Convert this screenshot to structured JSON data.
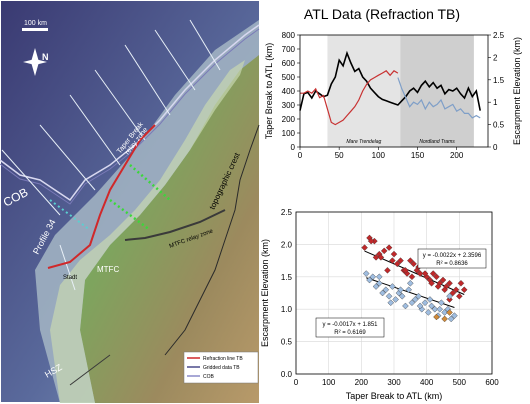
{
  "map_panel": {
    "scale_label": "100 km",
    "north_label": "N",
    "labels": [
      "COB",
      "Profile 34",
      "Taper Break",
      "relay zone",
      "topographic crest",
      "MTFC relay zone",
      "MTFC",
      "HSZ",
      "Stadt"
    ],
    "legend": [
      {
        "label": "Refraction line TB",
        "color": "#d0282a"
      },
      {
        "label": "Gridded data TB",
        "color": "#4a4a8a"
      },
      {
        "label": "COB",
        "color": "#8a8ac8"
      }
    ]
  },
  "chart_data": [
    {
      "type": "line",
      "title": "ATL Data (Refraction TB)",
      "xlabel": "",
      "ylabel": "Taper Break to ATL (km)",
      "y2label": "Escarpment Elevation (km)",
      "xlim": [
        0,
        240
      ],
      "ylim": [
        0,
        800
      ],
      "y2lim": [
        0,
        2.5
      ],
      "xticks": [
        0,
        50,
        100,
        150,
        200
      ],
      "yticks": [
        0,
        100,
        200,
        300,
        400,
        500,
        600,
        700,
        800
      ],
      "y2ticks": [
        0,
        0.5,
        1,
        1.5,
        2,
        2.5
      ],
      "regions": [
        {
          "label": "Mare Trendelag",
          "x0": 35,
          "x1": 128
        },
        {
          "label": "Nordland Trams",
          "x0": 128,
          "x1": 222
        }
      ],
      "series": [
        {
          "axis": "left",
          "color": "#000000",
          "x": [
            0,
            5,
            10,
            15,
            20,
            25,
            30,
            35,
            40,
            45,
            50,
            55,
            60,
            65,
            70,
            75,
            80,
            85,
            90,
            95,
            100,
            105,
            110,
            115,
            120,
            125,
            130,
            135,
            140,
            145,
            150,
            155,
            160,
            165,
            170,
            175,
            180,
            185,
            190,
            195,
            200,
            205,
            210,
            215,
            220,
            225,
            230
          ],
          "y": [
            260,
            380,
            390,
            350,
            400,
            380,
            360,
            370,
            450,
            500,
            620,
            580,
            670,
            600,
            540,
            560,
            500,
            470,
            420,
            390,
            360,
            340,
            330,
            320,
            310,
            300,
            330,
            360,
            400,
            420,
            390,
            440,
            470,
            430,
            460,
            420,
            440,
            380,
            410,
            400,
            420,
            380,
            350,
            420,
            360,
            400,
            260
          ]
        },
        {
          "axis": "right",
          "color": "#c83232",
          "x": [
            0,
            5,
            10,
            15,
            20,
            25,
            30,
            35,
            40,
            45,
            50,
            55,
            60,
            65,
            70,
            75,
            80,
            85,
            90,
            95,
            100,
            105,
            110,
            115,
            120,
            125
          ],
          "y": [
            1.2,
            1.2,
            1.25,
            1.2,
            1.3,
            1.1,
            1.15,
            0.85,
            0.55,
            0.5,
            0.55,
            0.6,
            0.7,
            0.8,
            0.9,
            1.05,
            1.25,
            1.4,
            1.5,
            1.55,
            1.6,
            1.65,
            1.7,
            1.6,
            1.7,
            1.65
          ]
        },
        {
          "axis": "right",
          "color": "#7f9fc8",
          "x": [
            125,
            130,
            135,
            140,
            145,
            150,
            155,
            160,
            165,
            170,
            175,
            180,
            185,
            190,
            195,
            200,
            205,
            210,
            215,
            220,
            225,
            230
          ],
          "y": [
            1.55,
            1.3,
            1.1,
            0.9,
            1.0,
            0.95,
            1.05,
            0.85,
            1.0,
            0.9,
            0.95,
            1.05,
            0.85,
            0.9,
            0.95,
            0.8,
            0.85,
            0.75,
            0.75,
            0.65,
            0.7,
            0.65
          ]
        }
      ]
    },
    {
      "type": "scatter",
      "title": "",
      "xlabel": "Taper Break to ATL (km)",
      "ylabel": "Escarpment Elevation (km)",
      "xlim": [
        0,
        600
      ],
      "ylim": [
        0,
        2.5
      ],
      "xticks": [
        0,
        100,
        200,
        300,
        400,
        500,
        600
      ],
      "yticks": [
        0.0,
        0.5,
        1.0,
        1.5,
        2.0,
        2.5
      ],
      "grid": true,
      "series": [
        {
          "marker": "diamond",
          "color": "#c0282a",
          "x": [
            210,
            225,
            240,
            245,
            255,
            270,
            285,
            295,
            300,
            310,
            320,
            330,
            340,
            350,
            360,
            370,
            380,
            390,
            400,
            410,
            420,
            430,
            440,
            450,
            460,
            470,
            480,
            490,
            500,
            505,
            515,
            230,
            260,
            280,
            335,
            355,
            375,
            395,
            415,
            435,
            455,
            470
          ],
          "y": [
            1.95,
            2.1,
            2.05,
            1.8,
            1.85,
            1.9,
            1.95,
            1.75,
            1.85,
            1.7,
            1.75,
            1.6,
            1.55,
            1.75,
            1.7,
            1.6,
            1.55,
            1.7,
            1.5,
            1.45,
            1.55,
            1.5,
            1.4,
            1.45,
            1.35,
            1.4,
            1.25,
            1.3,
            1.2,
            1.4,
            1.3,
            2.05,
            1.8,
            1.6,
            1.6,
            1.5,
            1.65,
            1.55,
            1.4,
            1.35,
            1.3,
            1.15
          ],
          "trend": {
            "label1": "y = -0.0022x + 2.3596",
            "label2": "R² = 0.8636",
            "slope": -0.0022,
            "intercept": 2.3596
          }
        },
        {
          "marker": "diamond",
          "color": "#9fbde0",
          "x": [
            215,
            225,
            235,
            245,
            255,
            265,
            275,
            285,
            295,
            305,
            315,
            325,
            335,
            345,
            355,
            365,
            375,
            385,
            395,
            405,
            415,
            425,
            435,
            445,
            455,
            465,
            475,
            485,
            255,
            290,
            320,
            350,
            380,
            410,
            440,
            470
          ],
          "y": [
            1.55,
            1.45,
            1.5,
            1.35,
            1.4,
            1.25,
            1.3,
            1.2,
            1.35,
            1.15,
            1.25,
            1.2,
            1.05,
            1.3,
            1.1,
            1.15,
            1.2,
            1.0,
            1.1,
            0.95,
            1.05,
            1.0,
            0.9,
            1.1,
            0.95,
            1.0,
            0.85,
            0.9,
            1.5,
            1.1,
            1.3,
            1.4,
            1.05,
            1.15,
            1.0,
            1.2
          ],
          "trend": {
            "label1": "y = -0.0017x + 1.851",
            "label2": "R² = 0.6169",
            "slope": -0.0017,
            "intercept": 1.851
          }
        },
        {
          "marker": "diamond",
          "color": "#d08a3a",
          "x": [
            455,
            470,
            430
          ],
          "y": [
            0.85,
            0.95,
            0.88
          ]
        }
      ]
    }
  ]
}
